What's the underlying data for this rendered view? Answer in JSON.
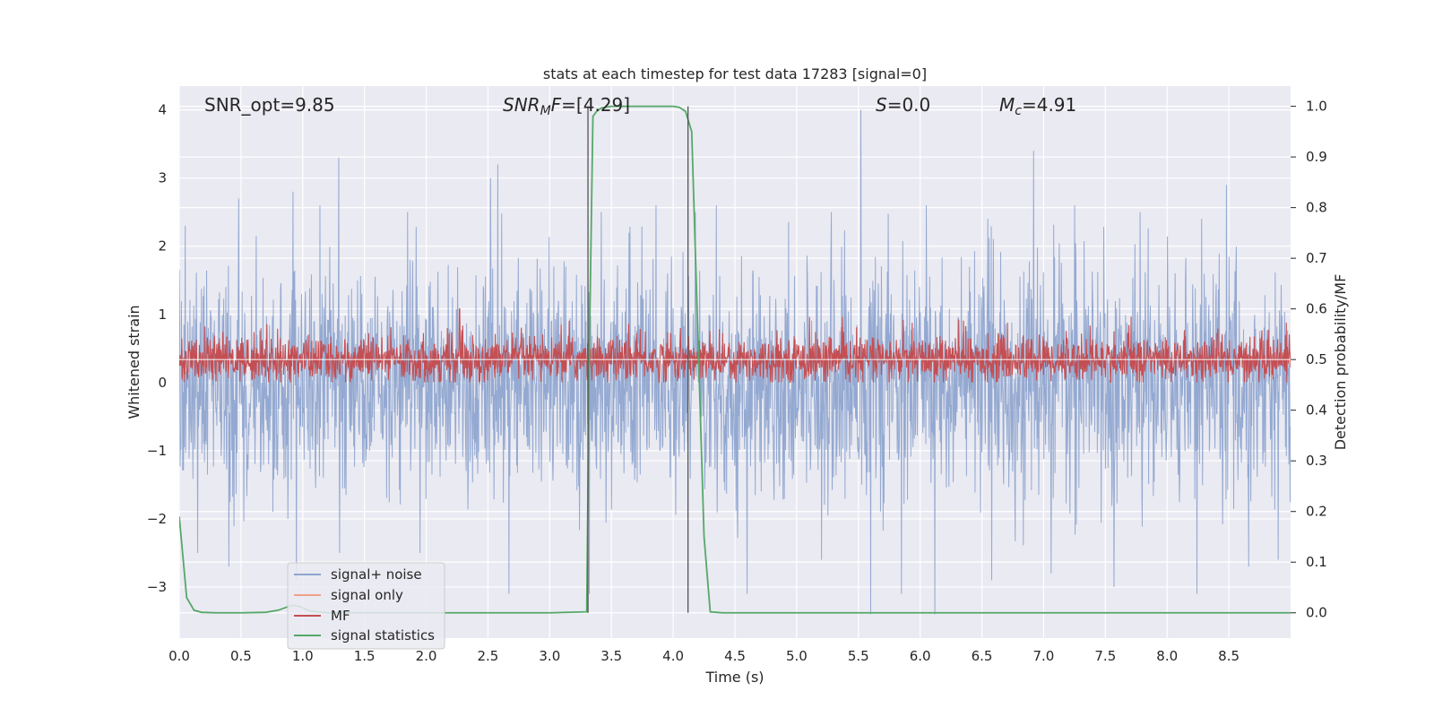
{
  "chart_data": {
    "type": "line",
    "title": "stats at each timestep for test data 17283 [signal=0]",
    "xlabel": "Time (s)",
    "ylabel": "Whitened strain",
    "y2label": "Detection probability/MF",
    "xlim": [
      0.0,
      9.0
    ],
    "ylim": [
      -3.75,
      4.35
    ],
    "y2lim": [
      -0.05,
      1.04
    ],
    "x_ticks": [
      "0.0",
      "0.5",
      "1.0",
      "1.5",
      "2.0",
      "2.5",
      "3.0",
      "3.5",
      "4.0",
      "4.5",
      "5.0",
      "5.5",
      "6.0",
      "6.5",
      "7.0",
      "7.5",
      "8.0",
      "8.5"
    ],
    "y_ticks": [
      4,
      3,
      2,
      1,
      0,
      -1,
      -2,
      -3
    ],
    "y_tick_labels": [
      "4",
      "3",
      "2",
      "1",
      "0",
      "−1",
      "−2",
      "−3"
    ],
    "y2_ticks": [
      1.0,
      0.9,
      0.8,
      0.7,
      0.6,
      0.5,
      0.4,
      0.3,
      0.2,
      0.1,
      0.0
    ],
    "y2_tick_labels": [
      "1.0",
      "0.9",
      "0.8",
      "0.7",
      "0.6",
      "0.5",
      "0.4",
      "0.3",
      "0.2",
      "0.1",
      "0.0"
    ],
    "grid": true,
    "legend_placement": "lower-left",
    "annotations": {
      "snr_opt": "SNR_opt=9.85",
      "snr_mf_main": "SNR",
      "snr_mf_sub": "M",
      "snr_mf_rest": "F",
      "snr_mf_value": "=[4.29]",
      "s_main": "S",
      "s_value": "=0.0",
      "mc_main": "M",
      "mc_sub": "c",
      "mc_value": "=4.91"
    },
    "vertical_markers_x": [
      3.31,
      4.12
    ],
    "series": [
      {
        "name": "signal+ noise",
        "color": "#8fa5cf",
        "axis": "left",
        "style": "dense noise, approx ±1.4 typical, extremes −3.4 to 4.0",
        "peaks_upper": [
          [
            0.05,
            2.3
          ],
          [
            0.48,
            2.7
          ],
          [
            0.92,
            2.8
          ],
          [
            1.14,
            2.6
          ],
          [
            1.29,
            3.3
          ],
          [
            1.85,
            2.5
          ],
          [
            2.52,
            3.0
          ],
          [
            2.58,
            3.2
          ],
          [
            3.86,
            2.6
          ],
          [
            4.18,
            2.5
          ],
          [
            4.35,
            2.6
          ],
          [
            5.28,
            2.5
          ],
          [
            5.52,
            4.0
          ],
          [
            6.05,
            2.6
          ],
          [
            6.55,
            2.4
          ],
          [
            6.92,
            3.4
          ],
          [
            7.25,
            2.6
          ],
          [
            7.78,
            2.5
          ],
          [
            8.28,
            2.4
          ],
          [
            8.48,
            2.9
          ]
        ],
        "peaks_lower": [
          [
            0.15,
            -2.5
          ],
          [
            0.4,
            -2.7
          ],
          [
            0.95,
            -2.9
          ],
          [
            1.3,
            -2.5
          ],
          [
            1.95,
            -2.5
          ],
          [
            2.67,
            -3.1
          ],
          [
            3.32,
            -3.1
          ],
          [
            4.6,
            -3.1
          ],
          [
            5.2,
            -2.6
          ],
          [
            5.6,
            -3.4
          ],
          [
            5.85,
            -3.1
          ],
          [
            6.12,
            -3.4
          ],
          [
            6.58,
            -2.9
          ],
          [
            7.06,
            -2.8
          ],
          [
            7.57,
            -3.0
          ],
          [
            8.24,
            -3.1
          ],
          [
            8.66,
            -2.7
          ],
          [
            8.9,
            -2.6
          ]
        ]
      },
      {
        "name": "signal only",
        "color": "#f0a088",
        "axis": "left",
        "values_note": "flat, not visible (signal=0)"
      },
      {
        "name": "MF",
        "color": "#c44e52",
        "axis": "right",
        "baseline": 0.5,
        "spread": [
          0.46,
          0.58
        ],
        "peak": [
          2.27,
          0.6
        ]
      },
      {
        "name": "signal statistics",
        "color": "#55a868",
        "axis": "right",
        "x": [
          0.0,
          0.06,
          0.12,
          0.18,
          0.3,
          0.5,
          0.7,
          0.8,
          0.88,
          0.93,
          0.98,
          1.05,
          1.2,
          2.0,
          3.0,
          3.3,
          3.32,
          3.35,
          3.38,
          3.42,
          3.5,
          3.6,
          3.8,
          4.0,
          4.05,
          4.1,
          4.15,
          4.2,
          4.25,
          4.3,
          4.4,
          5.0,
          6.0,
          7.0,
          8.0,
          9.0
        ],
        "y": [
          0.19,
          0.03,
          0.005,
          0.001,
          0.0,
          0.0,
          0.001,
          0.005,
          0.012,
          0.015,
          0.012,
          0.004,
          0.0,
          0.0,
          0.0,
          0.002,
          0.5,
          0.98,
          0.99,
          0.997,
          1.0,
          1.0,
          1.0,
          1.0,
          0.998,
          0.99,
          0.95,
          0.55,
          0.15,
          0.002,
          0.0,
          0.0,
          0.0,
          0.0,
          0.0,
          0.0
        ]
      }
    ]
  }
}
